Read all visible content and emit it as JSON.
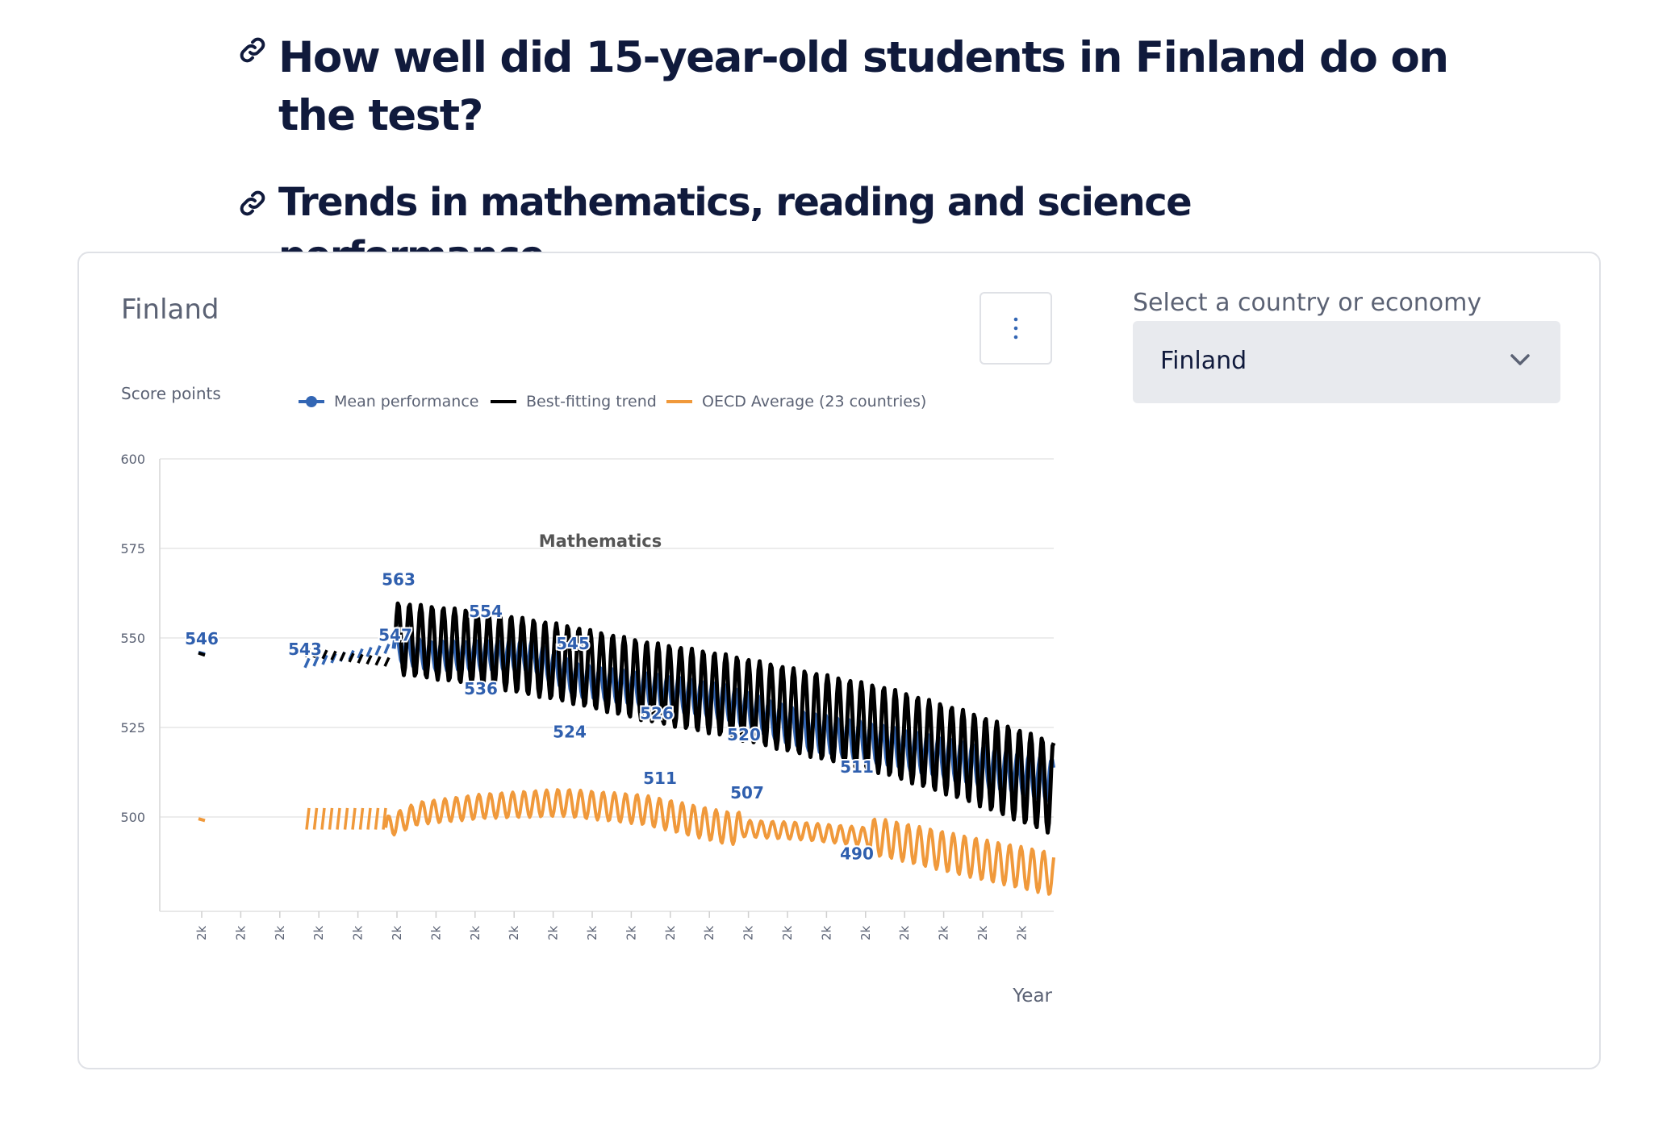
{
  "headings": {
    "main": "How well did 15-year-old students in Finland do on the test?",
    "trends": "Trends in mathematics, reading and science performance"
  },
  "card": {
    "title": "Finland",
    "menu_icon": "vertical-ellipsis-icon",
    "selector_label": "Select a country or economy",
    "selector_value": "Finland"
  },
  "colors": {
    "heading": "#101a3c",
    "mean": "#3366b4",
    "trend": "#000000",
    "oecd": "#f0993b"
  },
  "chart_data": {
    "type": "line",
    "title": "Mathematics",
    "ylabel": "Score points",
    "xlabel": "Year",
    "ylim": [
      475,
      600
    ],
    "yticks": [
      500,
      525,
      550,
      575,
      600
    ],
    "x_tick_label": "2k",
    "x_tick_count": 22,
    "grid": true,
    "legend_position": "top",
    "series": [
      {
        "name": "Mean performance",
        "style": "line-with-marker"
      },
      {
        "name": "Best-fitting trend",
        "style": "line"
      },
      {
        "name": "OECD Average (23 countries)",
        "style": "line"
      }
    ],
    "labels": [
      546,
      543,
      547,
      563,
      554,
      536,
      545,
      524,
      526,
      511,
      520,
      507,
      511,
      490
    ]
  }
}
